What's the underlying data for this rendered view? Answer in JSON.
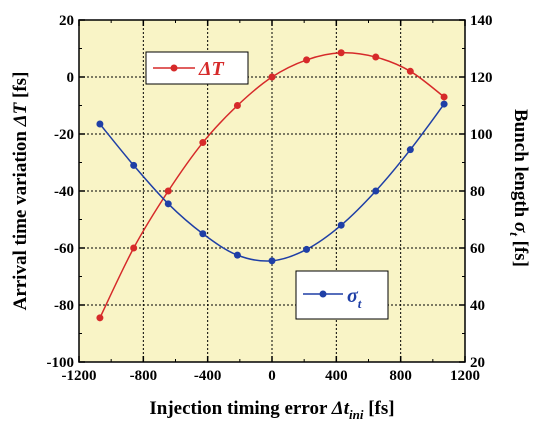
{
  "chart_data": {
    "type": "line",
    "xlabel": {
      "text": "Injection timing error ",
      "sym": "Δt",
      "sub": "ini",
      "unit": " [fs]"
    },
    "ylabel_left": {
      "text": "Arrival time variation  ",
      "sym": "ΔT",
      "unit": " [fs]"
    },
    "ylabel_right": {
      "text": "Bunch length  ",
      "sym": "σ",
      "sub": "t",
      "unit": " [fs]"
    },
    "xlim": [
      -1200,
      1200
    ],
    "ylim_left": [
      -100,
      20
    ],
    "ylim_right": [
      20,
      140
    ],
    "x_ticks": [
      "-1200",
      "-800",
      "-400",
      "0",
      "400",
      "800",
      "1200"
    ],
    "y_left_ticks": [
      "-100",
      "-80",
      "-60",
      "-40",
      "-20",
      "0",
      "20"
    ],
    "y_right_ticks": [
      "20",
      "40",
      "60",
      "80",
      "100",
      "120",
      "140"
    ],
    "grid": true,
    "series": [
      {
        "name": "ΔT",
        "legend_sym": "ΔT",
        "color": "#d62a2a",
        "axis": "left",
        "x": [
          -1070,
          -860,
          -645,
          -430,
          -215,
          0,
          215,
          430,
          645,
          860,
          1070
        ],
        "y": [
          -84.5,
          -60,
          -40,
          -23,
          -10,
          0,
          6,
          8.5,
          7,
          2,
          -7
        ]
      },
      {
        "name": "σt",
        "legend_sym": "σ",
        "legend_sub": "t",
        "color": "#1f3fa6",
        "axis": "right",
        "x": [
          -1070,
          -860,
          -645,
          -430,
          -215,
          0,
          215,
          430,
          645,
          860,
          1070
        ],
        "y": [
          103.5,
          89,
          75.5,
          65,
          57.5,
          55.5,
          59.5,
          68,
          80,
          94.5,
          110.5
        ]
      }
    ]
  }
}
